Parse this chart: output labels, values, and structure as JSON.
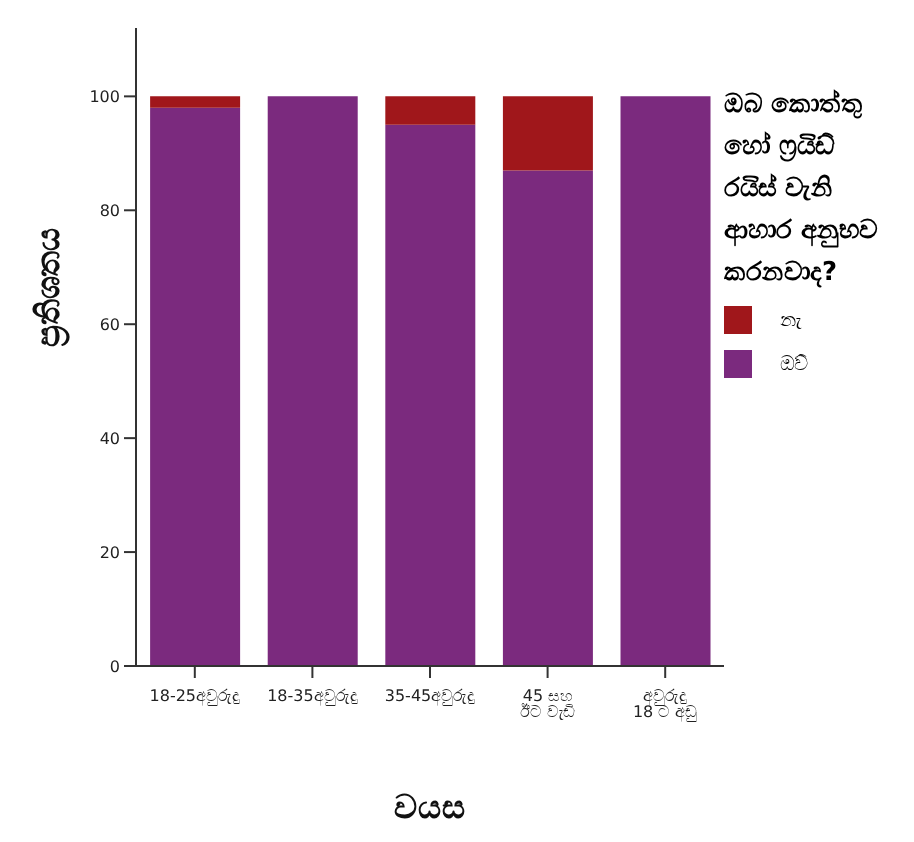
{
  "chart_data": {
    "type": "bar",
    "stacked": true,
    "categories": [
      "18-25අවුරුදු",
      "18-35අවුරුදු",
      "35-45අවුරුදු",
      "45 සහ ඊට වැඩි",
      "අවුරුදු 18 ට අඩු"
    ],
    "series": [
      {
        "name": "ඔව්",
        "color": "#7b2a7e",
        "values": [
          98,
          100,
          95,
          87,
          100
        ]
      },
      {
        "name": "නැ",
        "color": "#a0171b",
        "values": [
          2,
          0,
          5,
          13,
          0
        ]
      }
    ],
    "xlabel": "වයස",
    "ylabel": "ප්‍රතිශතය",
    "legend_title": "ඔබ කොත්තු හෝ ෆ්‍රයිඩ් රයිස් වැනි ආහාර අනුභව කරනවාද?",
    "legend": "right",
    "grid": false,
    "ylim": [
      0,
      112
    ],
    "yticks": [
      0,
      20,
      40,
      60,
      80,
      100
    ]
  }
}
